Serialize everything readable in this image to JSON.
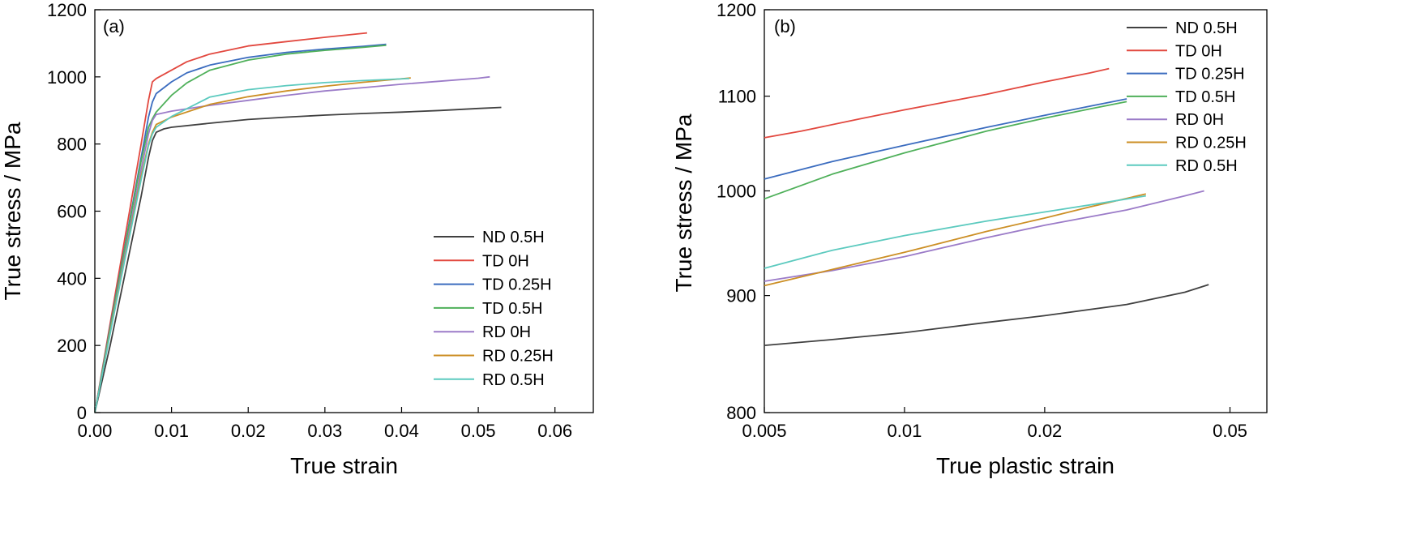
{
  "legend_entries": [
    "ND 0.5H",
    "TD 0H",
    "TD 0.25H",
    "TD 0.5H",
    "RD 0H",
    "RD 0.25H",
    "RD 0.5H"
  ],
  "colors": {
    "ND 0.5H": "#404040",
    "TD 0H": "#e2483f",
    "TD 0.25H": "#3b6cbf",
    "TD 0.5H": "#4fb05a",
    "RD 0H": "#9b7bc8",
    "RD 0.25H": "#cc8f25",
    "RD 0.5H": "#5ccabf"
  },
  "chart_data": [
    {
      "type": "line",
      "panel_label": "(a)",
      "xlabel": "True strain",
      "ylabel": "True stress / MPa",
      "xlim": [
        0,
        0.065
      ],
      "ylim": [
        0,
        1200
      ],
      "xticks": [
        "0.00",
        "0.01",
        "0.02",
        "0.03",
        "0.04",
        "0.05",
        "0.06"
      ],
      "yticks": [
        "0",
        "200",
        "400",
        "600",
        "800",
        "1000",
        "1200"
      ],
      "xscale": "linear",
      "yscale": "linear",
      "grid": false,
      "legend_position": "lower-right",
      "series": [
        {
          "name": "ND 0.5H",
          "x": [
            0,
            0.002,
            0.004,
            0.006,
            0.007,
            0.0075,
            0.008,
            0.009,
            0.01,
            0.015,
            0.02,
            0.025,
            0.03,
            0.035,
            0.04,
            0.045,
            0.05,
            0.053
          ],
          "y": [
            0,
            200,
            420,
            640,
            760,
            810,
            835,
            845,
            850,
            862,
            873,
            880,
            886,
            891,
            895,
            900,
            906,
            909
          ]
        },
        {
          "name": "TD 0H",
          "x": [
            0,
            0.002,
            0.004,
            0.006,
            0.007,
            0.0075,
            0.008,
            0.01,
            0.012,
            0.015,
            0.02,
            0.025,
            0.03,
            0.0355
          ],
          "y": [
            0,
            265,
            530,
            795,
            930,
            985,
            995,
            1020,
            1045,
            1068,
            1092,
            1105,
            1118,
            1131
          ]
        },
        {
          "name": "TD 0.25H",
          "x": [
            0,
            0.002,
            0.004,
            0.006,
            0.007,
            0.0075,
            0.008,
            0.01,
            0.012,
            0.015,
            0.02,
            0.025,
            0.03,
            0.035,
            0.038
          ],
          "y": [
            0,
            255,
            505,
            755,
            880,
            925,
            950,
            985,
            1012,
            1035,
            1058,
            1073,
            1083,
            1091,
            1097
          ]
        },
        {
          "name": "TD 0.5H",
          "x": [
            0,
            0.002,
            0.004,
            0.006,
            0.007,
            0.0075,
            0.008,
            0.01,
            0.012,
            0.015,
            0.02,
            0.025,
            0.03,
            0.035,
            0.038
          ],
          "y": [
            0,
            250,
            500,
            745,
            850,
            875,
            895,
            945,
            982,
            1020,
            1050,
            1068,
            1079,
            1088,
            1094
          ]
        },
        {
          "name": "RD 0H",
          "x": [
            0,
            0.002,
            0.004,
            0.006,
            0.007,
            0.0075,
            0.008,
            0.01,
            0.015,
            0.02,
            0.025,
            0.03,
            0.035,
            0.04,
            0.045,
            0.05,
            0.0515
          ],
          "y": [
            0,
            240,
            480,
            720,
            830,
            870,
            888,
            898,
            915,
            930,
            945,
            958,
            968,
            978,
            987,
            996,
            1000
          ]
        },
        {
          "name": "RD 0.25H",
          "x": [
            0,
            0.002,
            0.004,
            0.006,
            0.007,
            0.0075,
            0.008,
            0.01,
            0.015,
            0.02,
            0.025,
            0.03,
            0.035,
            0.0412
          ],
          "y": [
            0,
            240,
            470,
            700,
            800,
            835,
            858,
            880,
            918,
            941,
            958,
            972,
            984,
            997
          ]
        },
        {
          "name": "RD 0.5H",
          "x": [
            0,
            0.002,
            0.004,
            0.006,
            0.007,
            0.0075,
            0.008,
            0.01,
            0.015,
            0.02,
            0.025,
            0.03,
            0.035,
            0.041
          ],
          "y": [
            0,
            235,
            465,
            690,
            795,
            830,
            850,
            882,
            940,
            962,
            974,
            983,
            989,
            995
          ]
        }
      ]
    },
    {
      "type": "line",
      "panel_label": "(b)",
      "xlabel": "True plastic strain",
      "ylabel": "True stress / MPa",
      "xlim": [
        0.005,
        0.06
      ],
      "ylim": [
        800,
        1200
      ],
      "xticks": [
        "0.005",
        "0.01",
        "0.02",
        "0.05"
      ],
      "yticks": [
        "800",
        "900",
        "1000",
        "1100",
        "1200"
      ],
      "xscale": "log",
      "yscale": "log",
      "grid": false,
      "legend_position": "top-right",
      "series": [
        {
          "name": "ND 0.5H",
          "x": [
            0.005,
            0.007,
            0.01,
            0.015,
            0.02,
            0.03,
            0.04,
            0.045
          ],
          "y": [
            856,
            861,
            867,
            876,
            882,
            892,
            903,
            910
          ]
        },
        {
          "name": "TD 0H",
          "x": [
            0.005,
            0.006,
            0.008,
            0.01,
            0.015,
            0.02,
            0.025,
            0.0275
          ],
          "y": [
            1055,
            1062,
            1075,
            1085,
            1102,
            1116,
            1126,
            1131
          ]
        },
        {
          "name": "TD 0.25H",
          "x": [
            0.005,
            0.007,
            0.01,
            0.015,
            0.02,
            0.025,
            0.03
          ],
          "y": [
            1012,
            1030,
            1047,
            1066,
            1079,
            1089,
            1097
          ]
        },
        {
          "name": "TD 0.5H",
          "x": [
            0.005,
            0.007,
            0.01,
            0.015,
            0.02,
            0.025,
            0.03
          ],
          "y": [
            992,
            1017,
            1039,
            1062,
            1076,
            1086,
            1094
          ]
        },
        {
          "name": "RD 0H",
          "x": [
            0.005,
            0.007,
            0.01,
            0.015,
            0.02,
            0.03,
            0.04,
            0.044
          ],
          "y": [
            913,
            923,
            936,
            954,
            966,
            981,
            995,
            1000
          ]
        },
        {
          "name": "RD 0.25H",
          "x": [
            0.005,
            0.007,
            0.01,
            0.015,
            0.02,
            0.025,
            0.033
          ],
          "y": [
            909,
            924,
            940,
            960,
            973,
            984,
            997
          ]
        },
        {
          "name": "RD 0.5H",
          "x": [
            0.005,
            0.007,
            0.01,
            0.015,
            0.02,
            0.025,
            0.033
          ],
          "y": [
            925,
            942,
            956,
            970,
            979,
            986,
            995
          ]
        }
      ]
    }
  ]
}
